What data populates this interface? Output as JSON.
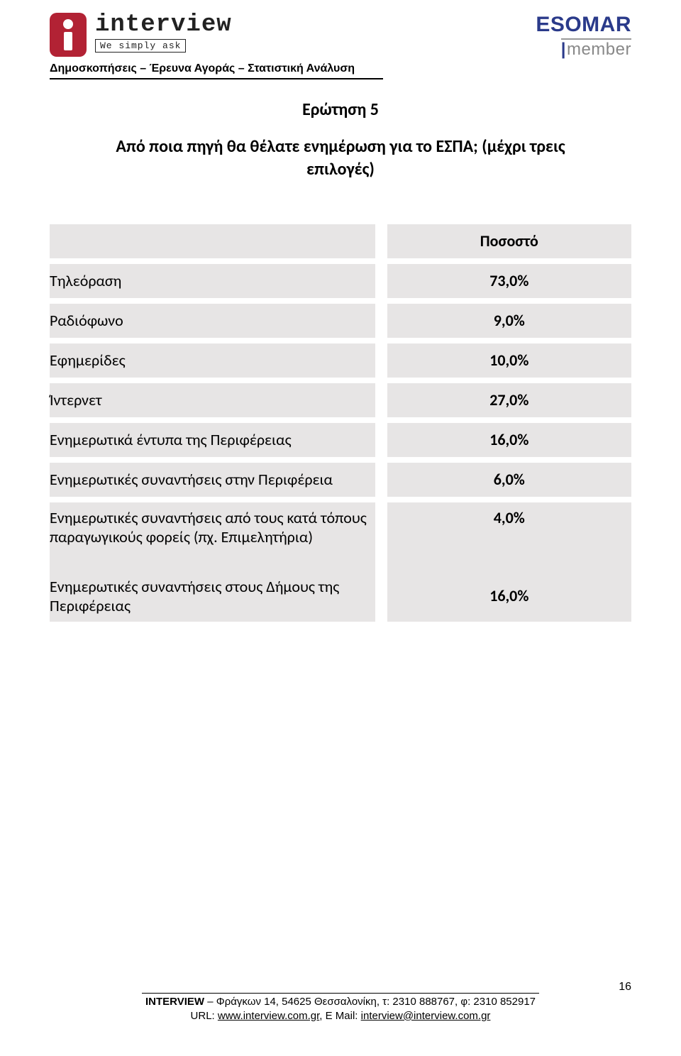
{
  "header": {
    "company": "interview",
    "tagline": "We simply ask",
    "subhead": "Δημοσκοπήσεις – Έρευνα Αγοράς – Στατιστική Ανάλυση",
    "esomar": "ESOMAR",
    "member": "member"
  },
  "question": {
    "title": "Ερώτηση 5",
    "text": "Από ποια πηγή θα θέλατε ενημέρωση για το ΕΣΠΑ; (μέχρι τρεις επιλογές)"
  },
  "table": {
    "header_value": "Ποσοστό",
    "rows": [
      {
        "label": "Τηλεόραση",
        "value": "73,0%"
      },
      {
        "label": "Ραδιόφωνο",
        "value": "9,0%"
      },
      {
        "label": "Εφημερίδες",
        "value": "10,0%"
      },
      {
        "label": "Ίντερνετ",
        "value": "27,0%"
      },
      {
        "label": "Ενημερωτικά έντυπα της Περιφέρειας",
        "value": "16,0%"
      },
      {
        "label": "Ενημερωτικές συναντήσεις στην Περιφέρεια",
        "value": "6,0%"
      },
      {
        "label": "Ενημερωτικές συναντήσεις από τους  κατά τόπους παραγωγικούς φορείς (πχ. Επιμελητήρια)",
        "value": "4,0%"
      },
      {
        "label": "Ενημερωτικές συναντήσεις στους Δήμους της Περιφέρειας",
        "value": "16,0%"
      }
    ],
    "shaded_color": "#e7e5e5",
    "font_size_label": 22,
    "font_size_value": 22
  },
  "footer": {
    "line1_prefix": "INTERVIEW",
    "line1_rest": " – Φράγκων 14, 54625 Θεσσαλονίκη, τ: 2310 888767, φ: 2310 852917",
    "line2_prefix": "URL: ",
    "url": "www.interview.com.gr",
    "line2_mid": ", E Mail: ",
    "email": "interview@interview.com.gr"
  },
  "page_number": "16"
}
